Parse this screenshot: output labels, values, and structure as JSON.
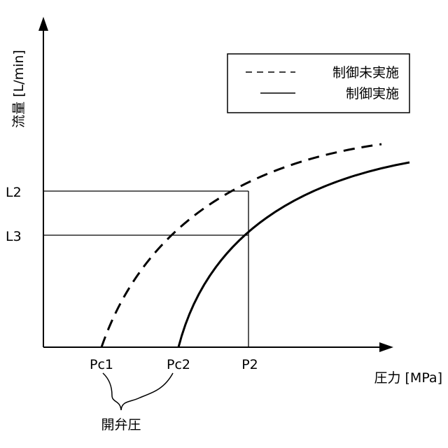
{
  "chart_data": {
    "type": "line",
    "ylabel": "流量 [L/min]",
    "xlabel": "圧力 [MPa]",
    "x_ticks": [
      "Pc1",
      "Pc2",
      "P2"
    ],
    "y_ticks": [
      "L2",
      "L3"
    ],
    "annotation": "開弁圧",
    "legend": {
      "placement": "top-right",
      "entries": [
        {
          "label": "制御未実施",
          "style": "dashed"
        },
        {
          "label": "制御実施",
          "style": "solid"
        }
      ]
    },
    "series": [
      {
        "name": "制御未実施",
        "style": "dashed",
        "start_tick": "Pc1",
        "passes_through": {
          "x": "P2",
          "y": "L2"
        }
      },
      {
        "name": "制御実施",
        "style": "solid",
        "start_tick": "Pc2",
        "passes_through": {
          "x": "P2",
          "y": "L3"
        }
      }
    ]
  }
}
